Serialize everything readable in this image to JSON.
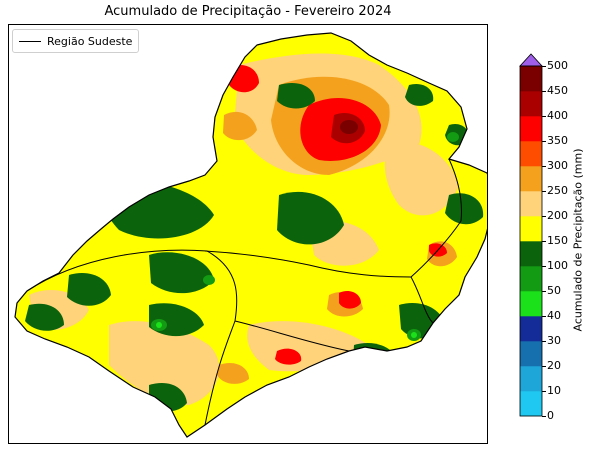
{
  "title": "Acumulado de Precipitação - Fevereiro 2024",
  "legend": {
    "label": "Região Sudeste"
  },
  "colorbar": {
    "label": "Acumulado de Precipitação (mm)",
    "ticks": [
      "0",
      "10",
      "20",
      "30",
      "40",
      "50",
      "100",
      "150",
      "200",
      "250",
      "300",
      "350",
      "400",
      "450",
      "500"
    ],
    "colors": [
      "#1ec8f0",
      "#1fa6d8",
      "#1670ae",
      "#142c98",
      "#1be11b",
      "#139b13",
      "#0b640b",
      "#ffff00",
      "#ffd37a",
      "#f4a21e",
      "#ff4d00",
      "#ff0000",
      "#aa0000",
      "#7a0000",
      "#ff00ff",
      "#9f5fe8"
    ],
    "extend": "max"
  }
}
